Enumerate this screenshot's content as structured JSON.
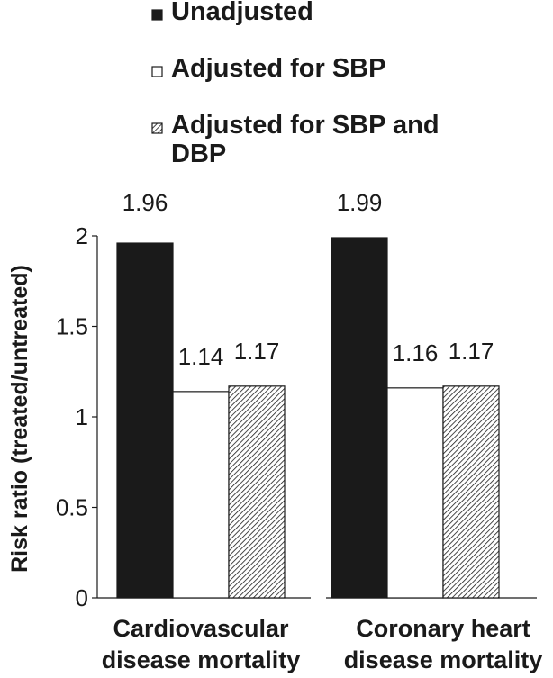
{
  "chart_data": {
    "type": "bar",
    "categories": [
      [
        "Cardiovascular",
        "disease mortality"
      ],
      [
        "Coronary heart",
        "disease mortality"
      ]
    ],
    "series": [
      {
        "name": "Unadjusted",
        "values": [
          1.96,
          1.99
        ],
        "labels": [
          "1.96",
          "1.99"
        ],
        "style": "solid"
      },
      {
        "name": "Adjusted for SBP",
        "values": [
          1.14,
          1.16
        ],
        "labels": [
          "1.14",
          "1.16"
        ],
        "style": "open"
      },
      {
        "name": "Adjusted for SBP and DBP",
        "legend_lines": [
          "Adjusted for SBP and",
          "DBP"
        ],
        "values": [
          1.17,
          1.17
        ],
        "labels": [
          "1.17",
          "1.17"
        ],
        "style": "hatched"
      }
    ],
    "ylabel": "Risk ratio (treated/untreated)",
    "ylim": [
      0,
      2
    ],
    "yticks": [
      0,
      0.5,
      1,
      1.5,
      2
    ],
    "ytick_labels": [
      "0",
      "0.5",
      "1",
      "1.5",
      "2"
    ],
    "grid": false,
    "legend_position": "top"
  },
  "colors": {
    "ink": "#1a1a1a",
    "background": "#ffffff"
  }
}
